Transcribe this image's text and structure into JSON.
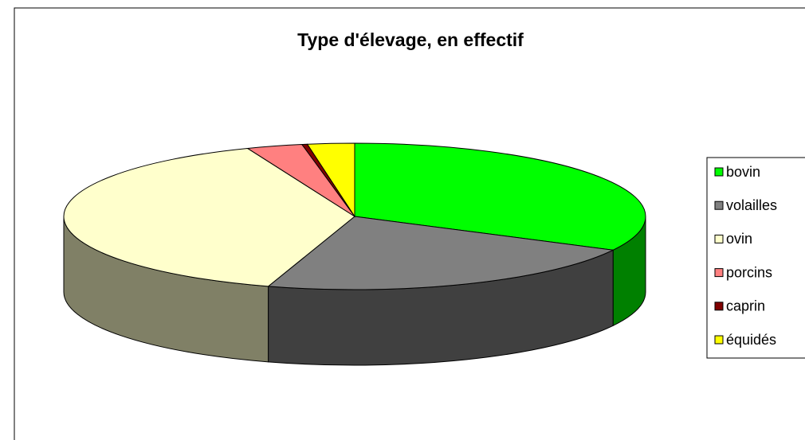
{
  "chart_data": {
    "type": "pie",
    "title": "Type d'élevage, en effectif",
    "categories": [
      "bovin",
      "volailles",
      "ovin",
      "porcins",
      "caprin",
      "équidés"
    ],
    "values": [
      32.6,
      22.2,
      39.2,
      3.1,
      0.3,
      2.6
    ],
    "colors": [
      "#00ff00",
      "#808080",
      "#ffffcc",
      "#ff8080",
      "#800000",
      "#ffff00"
    ],
    "legend": "right"
  }
}
